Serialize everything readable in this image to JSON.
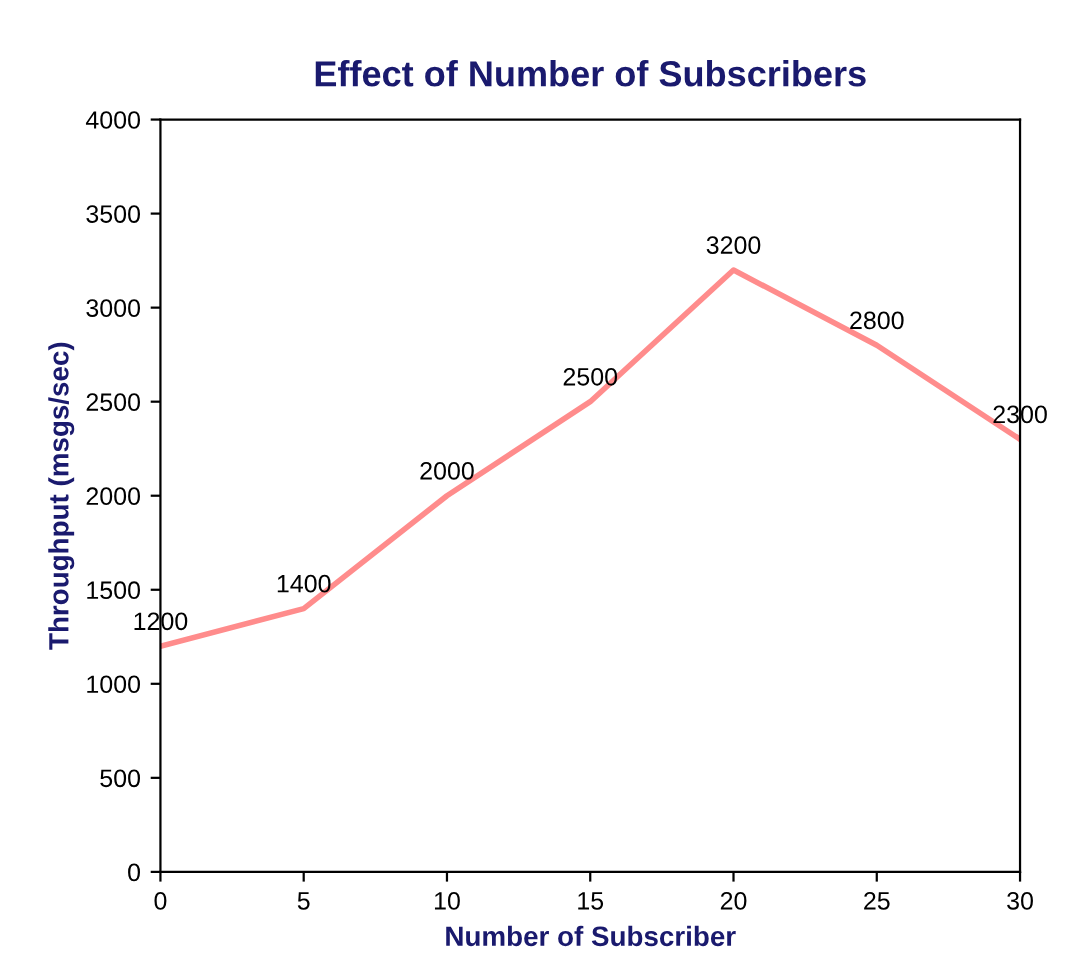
{
  "chart_data": {
    "type": "line",
    "title": "Effect of Number of Subscribers",
    "xlabel": "Number of Subscriber",
    "ylabel": "Throughput (msgs/sec)",
    "x": [
      0,
      5,
      10,
      15,
      20,
      25,
      30
    ],
    "series": [
      {
        "color": "#ff8c8c",
        "values": [
          1200,
          1400,
          2000,
          2500,
          3200,
          2800,
          2300
        ]
      }
    ],
    "xlim": [
      0,
      30
    ],
    "xticks": [
      0,
      5,
      10,
      15,
      20,
      25,
      30
    ],
    "ylim": [
      0,
      4000
    ],
    "yticks": [
      0,
      500,
      1000,
      1500,
      2000,
      2500,
      3000,
      3500,
      4000
    ],
    "data_labels": true,
    "grid": false,
    "legend": false,
    "marker": "none",
    "line_style": "solid"
  }
}
